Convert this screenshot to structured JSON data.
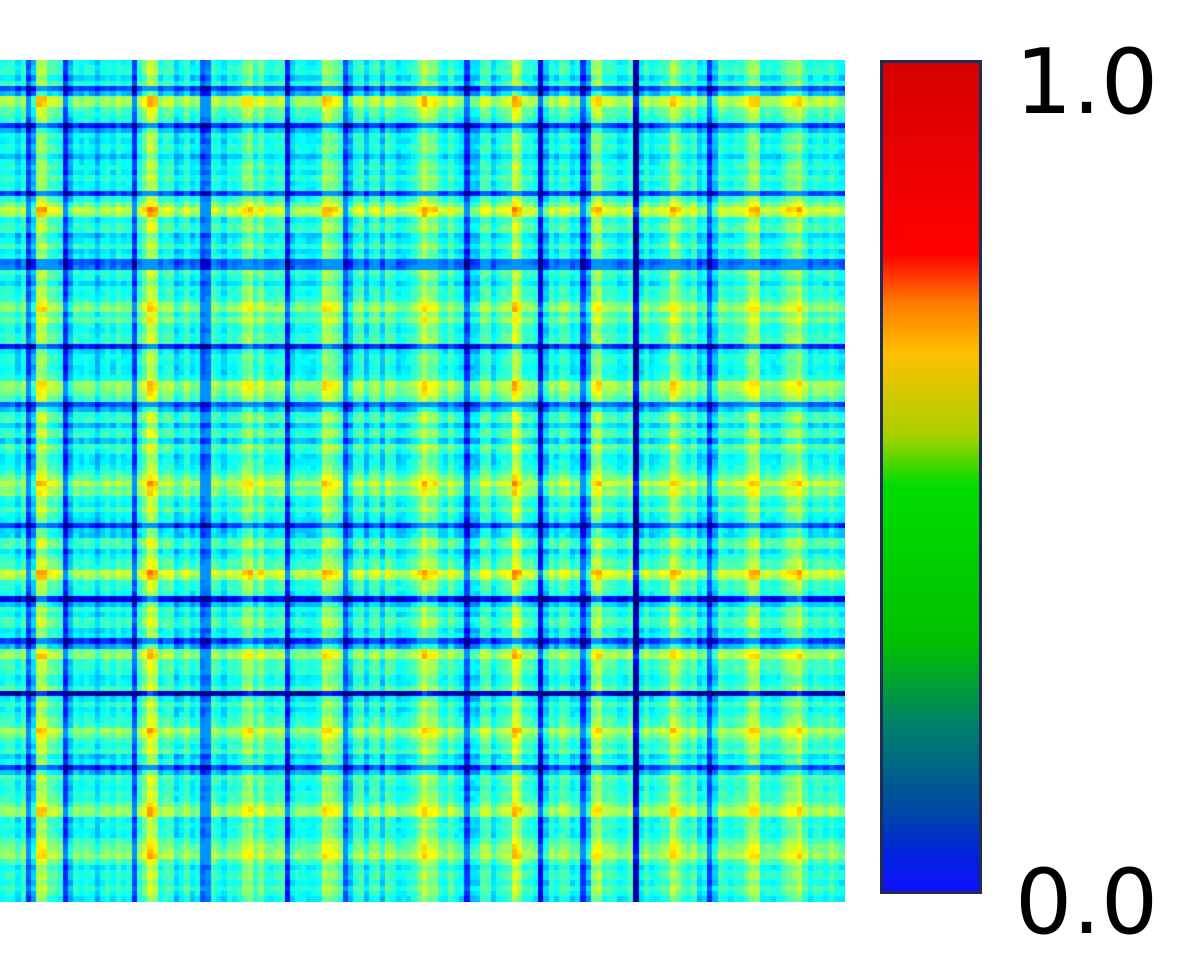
{
  "chart_data": {
    "type": "heatmap",
    "title": "",
    "xlabel": "",
    "ylabel": "",
    "value_range": [
      0.0,
      1.0
    ],
    "colorbar": {
      "max_label": "1.0",
      "min_label": "0.0",
      "colormap": "jet",
      "stops": [
        {
          "value": 1.0,
          "color": "#d50000"
        },
        {
          "value": 0.77,
          "color": "#ff0000"
        },
        {
          "value": 0.71,
          "color": "#ff7a00"
        },
        {
          "value": 0.65,
          "color": "#ffbf00"
        },
        {
          "value": 0.55,
          "color": "#a8d000"
        },
        {
          "value": 0.49,
          "color": "#00dd00"
        },
        {
          "value": 0.3,
          "color": "#00c000"
        },
        {
          "value": 0.2,
          "color": "#00806a"
        },
        {
          "value": 0.1,
          "color": "#004ba0"
        },
        {
          "value": 0.04,
          "color": "#0020e0"
        },
        {
          "value": 0.0,
          "color": "#1010ff"
        }
      ]
    },
    "matrix_summary": {
      "size": 160,
      "typical_value": 0.42,
      "high_value": 0.72,
      "low_value": 0.15,
      "low_bands": [
        5,
        12,
        25,
        38,
        54,
        65,
        88,
        102,
        110,
        120,
        134
      ],
      "strongest_low_band": 120,
      "high_bands": [
        8,
        28,
        47,
        62,
        80,
        97,
        113,
        127,
        142,
        150
      ]
    }
  }
}
